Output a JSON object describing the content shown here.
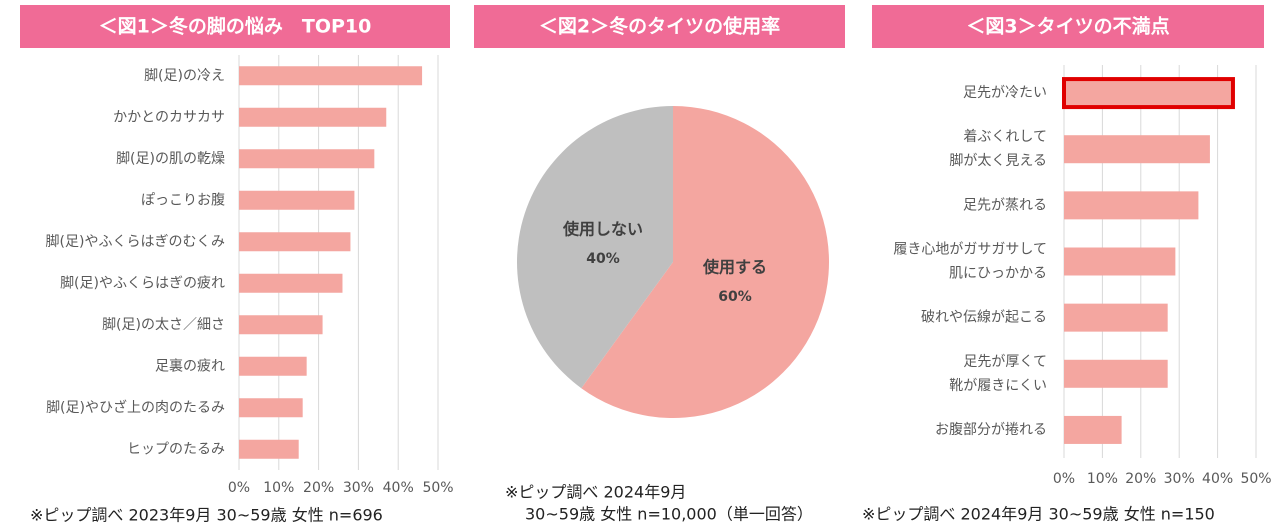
{
  "chart_data": [
    {
      "type": "bar",
      "title": "＜図1＞冬の脚の悩み　TOP10",
      "categories": [
        [
          "脚(足)の冷え"
        ],
        [
          "かかとのカサカサ"
        ],
        [
          "脚(足)の肌の乾燥"
        ],
        [
          "ぽっこりお腹"
        ],
        [
          "脚(足)やふくらはぎのむくみ"
        ],
        [
          "脚(足)やふくらはぎの疲れ"
        ],
        [
          "脚(足)の太さ／細さ"
        ],
        [
          "足裏の疲れ"
        ],
        [
          "脚(足)やひざ上の肉のたるみ"
        ],
        [
          "ヒップのたるみ"
        ]
      ],
      "values": [
        46,
        37,
        34,
        29,
        28,
        26,
        21,
        17,
        16,
        15
      ],
      "color": "#f4a6a0",
      "xlim": [
        0,
        50
      ],
      "xticks": [
        {
          "value": 0,
          "label": "0%"
        },
        {
          "value": 10,
          "label": "10%"
        },
        {
          "value": 20,
          "label": "20%"
        },
        {
          "value": 30,
          "label": "30%"
        },
        {
          "value": 40,
          "label": "40%"
        },
        {
          "value": 50,
          "label": "50%"
        }
      ],
      "grid": true,
      "note": [
        "※ピップ調べ 2023年9月 30~59歳 女性 n=696"
      ]
    },
    {
      "type": "pie",
      "title": "＜図2＞冬のタイツの使用率",
      "categories": [
        "使用する",
        "使用しない"
      ],
      "values": [
        60,
        40
      ],
      "value_labels": [
        "60%",
        "40%"
      ],
      "colors": [
        "#f4a6a0",
        "#bfbfbf"
      ],
      "note": [
        "※ピップ調べ 2024年9月",
        "30~59歳 女性 n=10,000（単一回答）"
      ]
    },
    {
      "type": "bar",
      "title": "＜図3＞タイツの不満点",
      "categories": [
        [
          "足先が冷たい"
        ],
        [
          "着ぶくれして",
          "脚が太く見える"
        ],
        [
          "足先が蒸れる"
        ],
        [
          "履き心地がガサガサして",
          "肌にひっかかる"
        ],
        [
          "破れや伝線が起こる"
        ],
        [
          "足先が厚くて",
          "靴が履きにくい"
        ],
        [
          "お腹部分が捲れる"
        ]
      ],
      "values": [
        44,
        38,
        35,
        29,
        27,
        27,
        15
      ],
      "color": "#f4a6a0",
      "highlight": 0,
      "highlight_color": "#e00000",
      "xlim": [
        0,
        50
      ],
      "xticks": [
        {
          "value": 0,
          "label": "0%"
        },
        {
          "value": 10,
          "label": "10%"
        },
        {
          "value": 20,
          "label": "20%"
        },
        {
          "value": 30,
          "label": "30%"
        },
        {
          "value": 40,
          "label": "40%"
        },
        {
          "value": 50,
          "label": "50%"
        }
      ],
      "grid": true,
      "note": [
        "※ピップ調べ 2024年9月 30~59歳 女性 n=150"
      ]
    }
  ]
}
